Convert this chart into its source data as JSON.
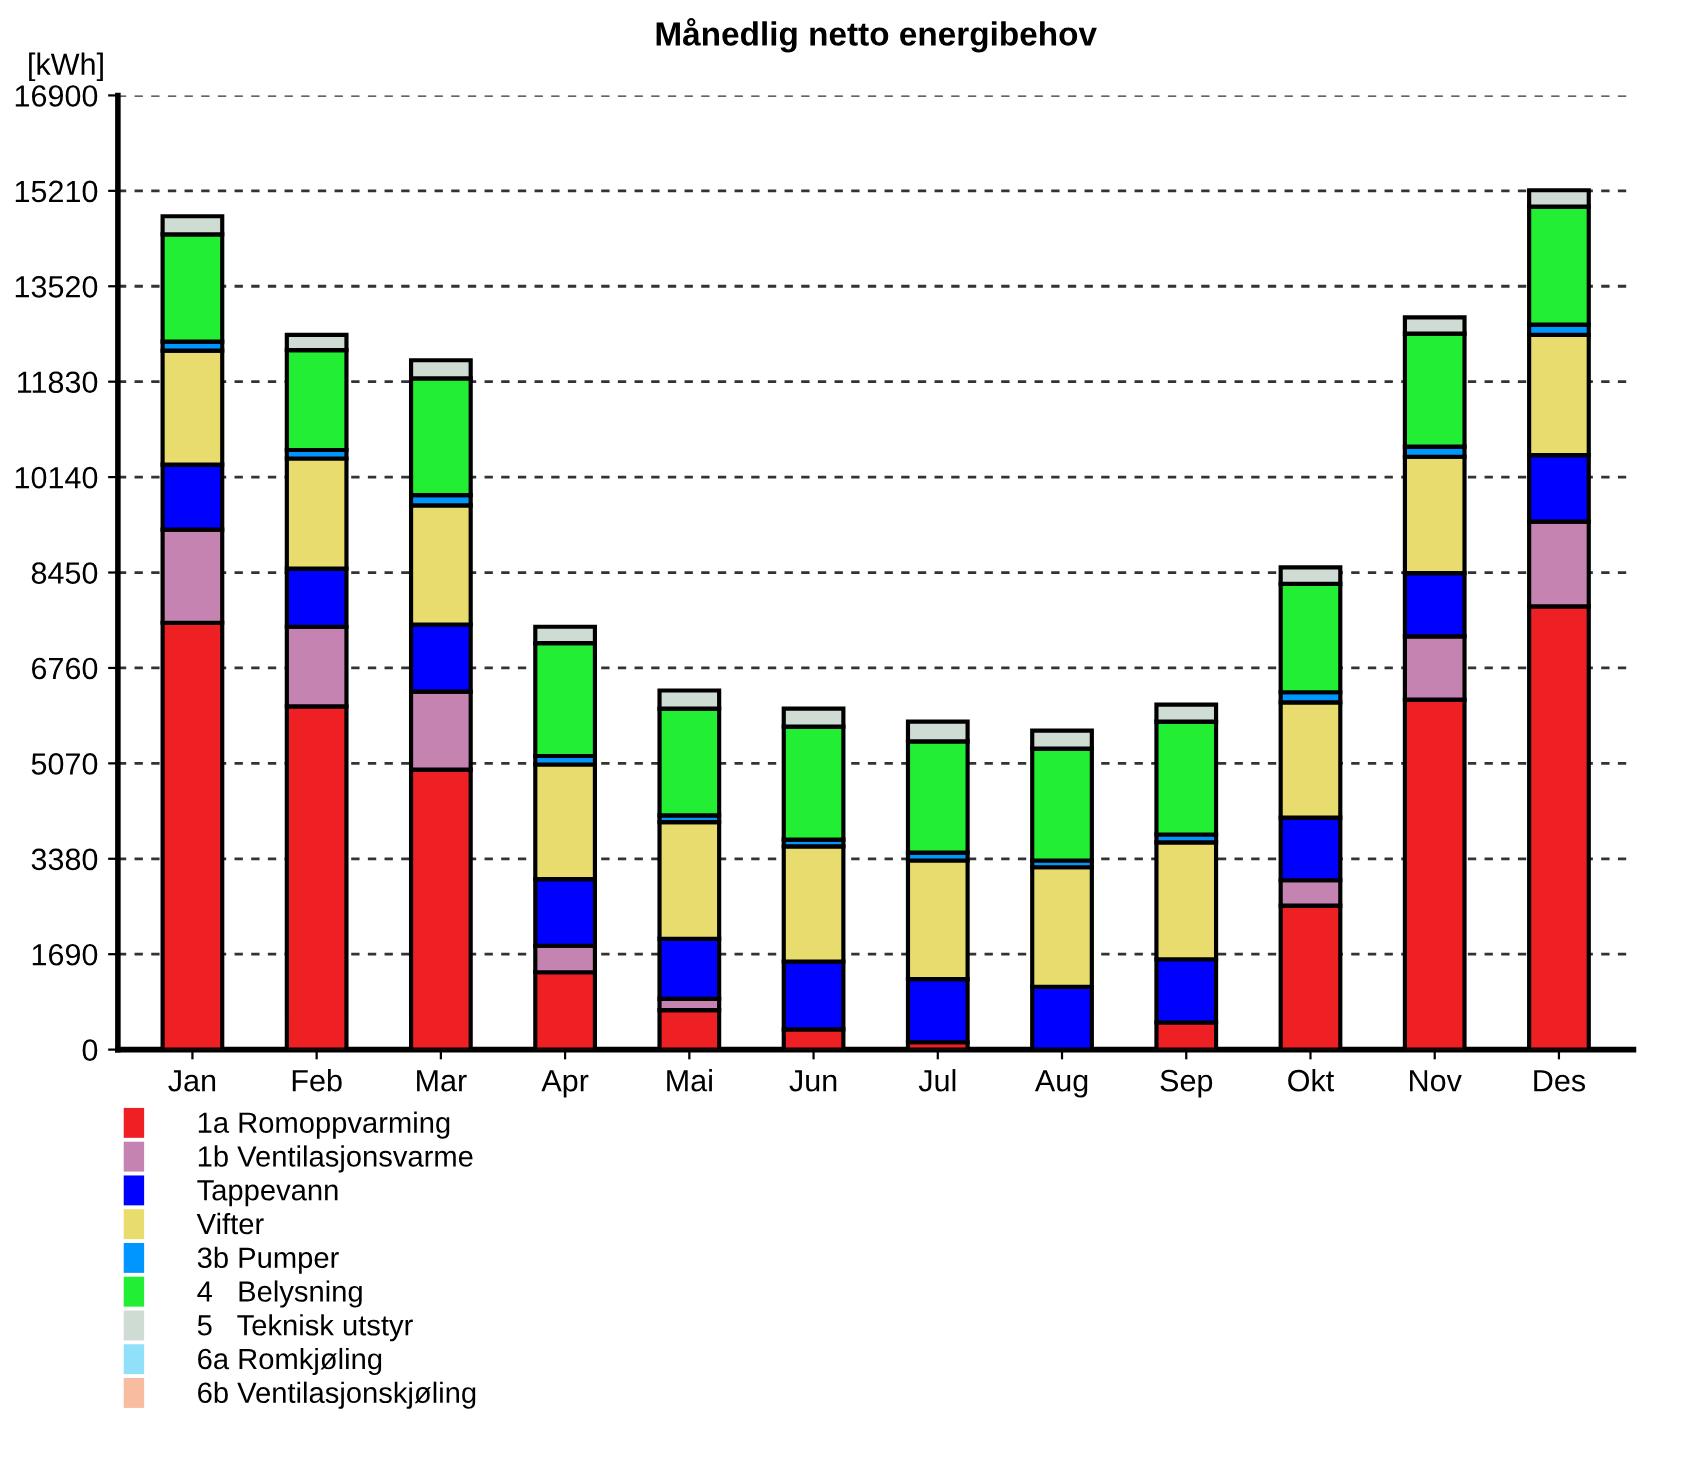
{
  "chart_data": {
    "type": "bar",
    "title": "Månedlig netto energibehov",
    "ylabel": "[kWh]",
    "categories": [
      "Jan",
      "Feb",
      "Mar",
      "Apr",
      "Mai",
      "Jun",
      "Jul",
      "Aug",
      "Sep",
      "Okt",
      "Nov",
      "Des"
    ],
    "stacked": true,
    "ylim": [
      0,
      16900
    ],
    "yticks": [
      0,
      1690,
      3380,
      5070,
      6760,
      8450,
      10140,
      11830,
      13520,
      15210,
      16900
    ],
    "grid": "y",
    "legend": "bottom left",
    "series": [
      {
        "name": "1a Romoppvarming",
        "color": "#ee2024",
        "values": [
          7560,
          6080,
          4960,
          1370,
          700,
          360,
          130,
          null,
          480,
          2550,
          6200,
          7850
        ]
      },
      {
        "name": "1b Ventilasjonsvarme",
        "color": "#c483b0",
        "values": [
          1650,
          1410,
          1380,
          470,
          200,
          0,
          0,
          0,
          0,
          450,
          1120,
          1500
        ]
      },
      {
        "name": "Tappevann",
        "color": "#0000ff",
        "values": [
          1150,
          1030,
          1190,
          1180,
          1060,
          1200,
          1120,
          1110,
          1120,
          1110,
          1120,
          1180
        ]
      },
      {
        "name": "Vifter",
        "color": "#e8dc6e",
        "values": [
          2020,
          1950,
          2110,
          2030,
          2070,
          2040,
          2100,
          2120,
          2070,
          2040,
          2060,
          2130
        ]
      },
      {
        "name": "3b Pumper",
        "color": "#0096ff",
        "values": [
          160,
          150,
          180,
          150,
          120,
          120,
          140,
          120,
          140,
          180,
          180,
          180
        ]
      },
      {
        "name": "4   Belysning",
        "color": "#22ee33",
        "values": [
          1900,
          1770,
          2070,
          2000,
          1890,
          2000,
          1970,
          1980,
          2000,
          1920,
          2000,
          2090
        ]
      },
      {
        "name": "5   Teknisk utstyr",
        "color": "#cfdcd4",
        "values": [
          320,
          270,
          320,
          290,
          320,
          320,
          350,
          320,
          300,
          290,
          290,
          290
        ]
      },
      {
        "name": "6a Romkjøling",
        "color": "#8fe0f8",
        "values": [
          0,
          0,
          0,
          0,
          0,
          0,
          0,
          0,
          0,
          0,
          0,
          0
        ]
      },
      {
        "name": "6b Ventilasjonskjøling",
        "color": "#f8bca0",
        "values": [
          0,
          0,
          0,
          0,
          0,
          0,
          0,
          0,
          0,
          0,
          0,
          0
        ]
      }
    ]
  }
}
